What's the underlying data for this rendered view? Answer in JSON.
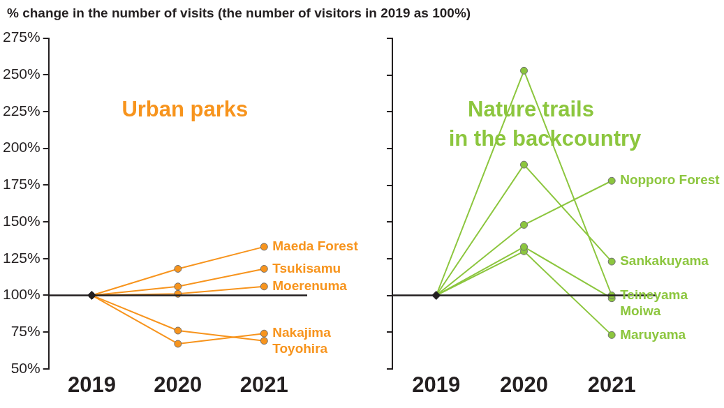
{
  "chart_data": [
    {
      "type": "line",
      "title": "% change in the number of visits (the number of visitors in 2019 as 100%)",
      "subtitle": "Urban parks",
      "categories": [
        "2019",
        "2020",
        "2021"
      ],
      "series": [
        {
          "name": "Maeda Forest",
          "color": "#f7941d",
          "values": [
            100,
            118,
            133
          ]
        },
        {
          "name": "Tsukisamu",
          "color": "#f7941d",
          "values": [
            100,
            106,
            118
          ]
        },
        {
          "name": "Moerenuma",
          "color": "#f7941d",
          "values": [
            100,
            101,
            106
          ]
        },
        {
          "name": "Nakajima",
          "color": "#f7941d",
          "values": [
            100,
            67,
            74
          ]
        },
        {
          "name": "Toyohira",
          "color": "#f7941d",
          "values": [
            100,
            76,
            69
          ]
        },
        {
          "type": "scatter",
          "color": "#231f20",
          "values": [
            100,
            null,
            null
          ],
          "marker": "diamond"
        }
      ],
      "ylim": [
        50,
        275
      ],
      "yticks": [
        {
          "value": 50,
          "label": "50%"
        },
        {
          "value": 75,
          "label": "75%"
        },
        {
          "value": 100,
          "label": "100%"
        },
        {
          "value": 125,
          "label": "125%"
        },
        {
          "value": 150,
          "label": "150%"
        },
        {
          "value": 175,
          "label": "175%"
        },
        {
          "value": 200,
          "label": "200%"
        },
        {
          "value": 225,
          "label": "225%"
        },
        {
          "value": 250,
          "label": "250%"
        },
        {
          "value": 275,
          "label": "275%"
        }
      ],
      "ref_lines": [
        {
          "axis": "y",
          "value": 100,
          "color": "#231f20"
        }
      ],
      "grid": false,
      "legend": false,
      "marker": "circle"
    },
    {
      "type": "line",
      "subtitle": "Nature trails\nin the backcountry",
      "categories": [
        "2019",
        "2020",
        "2021"
      ],
      "series": [
        {
          "name": "Nopporo Forest",
          "color": "#8cc63e",
          "values": [
            100,
            148,
            178
          ]
        },
        {
          "name": "Sankakuyama",
          "color": "#8cc63e",
          "values": [
            100,
            189,
            123
          ]
        },
        {
          "name": "Teineyama",
          "color": "#8cc63e",
          "values": [
            100,
            253,
            100
          ]
        },
        {
          "name": "Moiwa",
          "color": "#8cc63e",
          "values": [
            100,
            133,
            98
          ]
        },
        {
          "name": "Maruyama",
          "color": "#8cc63e",
          "values": [
            100,
            130,
            73
          ]
        },
        {
          "type": "scatter",
          "color": "#231f20",
          "values": [
            100,
            null,
            null
          ],
          "marker": "diamond"
        }
      ],
      "ylim": [
        50,
        275
      ],
      "yticks": [
        {
          "value": 50,
          "label": null
        },
        {
          "value": 75,
          "label": null
        },
        {
          "value": 100,
          "label": null
        },
        {
          "value": 125,
          "label": null
        },
        {
          "value": 150,
          "label": null
        },
        {
          "value": 175,
          "label": null
        },
        {
          "value": 200,
          "label": null
        },
        {
          "value": 225,
          "label": null
        },
        {
          "value": 250,
          "label": null
        },
        {
          "value": 275,
          "label": null
        }
      ],
      "tick_labels": "x",
      "ref_lines": [
        {
          "axis": "y",
          "value": 100,
          "color": "#231f20"
        }
      ],
      "grid": false,
      "legend": false,
      "marker": "circle"
    }
  ]
}
